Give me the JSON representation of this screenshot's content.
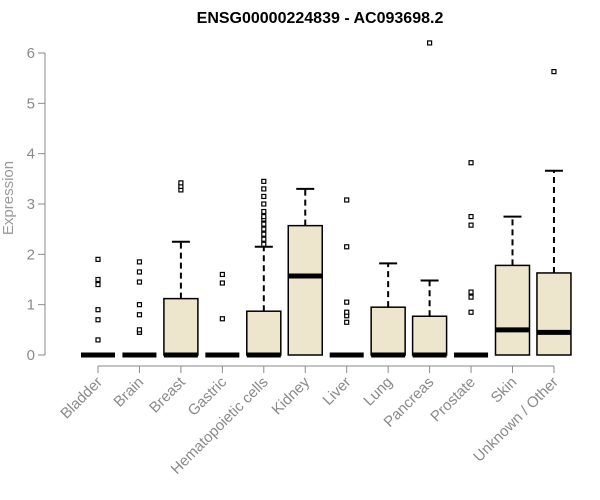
{
  "chart_data": {
    "type": "boxplot",
    "title": "ENSG00000224839 - AC093698.2",
    "xlabel": "",
    "ylabel": "Expression",
    "ylim": [
      0,
      6.2
    ],
    "yticks": [
      0,
      1,
      2,
      3,
      4,
      5,
      6
    ],
    "categories": [
      "Bladder",
      "Brain",
      "Breast",
      "Gastric",
      "Hematopoietic cells",
      "Kidney",
      "Liver",
      "Lung",
      "Pancreas",
      "Prostate",
      "Skin",
      "Unknown / Other"
    ],
    "boxes": [
      {
        "category": "Bladder",
        "min": 0,
        "q1": 0,
        "median": 0,
        "q3": 0,
        "max": 0,
        "outliers": [
          0.3,
          0.7,
          0.9,
          1.4,
          1.5,
          1.9
        ]
      },
      {
        "category": "Brain",
        "min": 0,
        "q1": 0,
        "median": 0,
        "q3": 0,
        "max": 0,
        "outliers": [
          0.45,
          0.5,
          0.8,
          1.0,
          1.45,
          1.65,
          1.85
        ]
      },
      {
        "category": "Breast",
        "min": 0,
        "q1": 0,
        "median": 0,
        "q3": 1.12,
        "max": 2.25,
        "outliers": [
          3.28,
          3.35,
          3.42
        ]
      },
      {
        "category": "Gastric",
        "min": 0,
        "q1": 0,
        "median": 0,
        "q3": 0,
        "max": 0,
        "outliers": [
          0.72,
          1.43,
          1.6
        ]
      },
      {
        "category": "Hematopoietic cells",
        "min": 0,
        "q1": 0,
        "median": 0,
        "q3": 0.87,
        "max": 2.15,
        "outliers": [
          2.2,
          2.3,
          2.4,
          2.5,
          2.6,
          2.7,
          2.75,
          2.85,
          3.0,
          3.15,
          3.3,
          3.45
        ]
      },
      {
        "category": "Kidney",
        "min": 0,
        "q1": 0,
        "median": 1.57,
        "q3": 2.57,
        "max": 3.3,
        "outliers": []
      },
      {
        "category": "Liver",
        "min": 0,
        "q1": 0,
        "median": 0,
        "q3": 0,
        "max": 0,
        "outliers": [
          0.65,
          0.78,
          0.85,
          1.05,
          2.15,
          3.08
        ]
      },
      {
        "category": "Lung",
        "min": 0,
        "q1": 0,
        "median": 0,
        "q3": 0.95,
        "max": 1.82,
        "outliers": []
      },
      {
        "category": "Pancreas",
        "min": 0,
        "q1": 0,
        "median": 0,
        "q3": 0.77,
        "max": 1.48,
        "outliers": [
          6.2
        ]
      },
      {
        "category": "Prostate",
        "min": 0,
        "q1": 0,
        "median": 0,
        "q3": 0,
        "max": 0,
        "outliers": [
          0.85,
          1.15,
          1.25,
          2.58,
          2.75,
          3.82
        ]
      },
      {
        "category": "Skin",
        "min": 0,
        "q1": 0,
        "median": 0.5,
        "q3": 1.78,
        "max": 2.75,
        "outliers": []
      },
      {
        "category": "Unknown / Other",
        "min": 0,
        "q1": 0,
        "median": 0.45,
        "q3": 1.63,
        "max": 3.66,
        "outliers": [
          5.63
        ]
      }
    ],
    "box_fill": "#ede6cd",
    "box_stroke": "#000000",
    "axis_color": "#8a8a8a",
    "grid": false,
    "legend": "none"
  }
}
